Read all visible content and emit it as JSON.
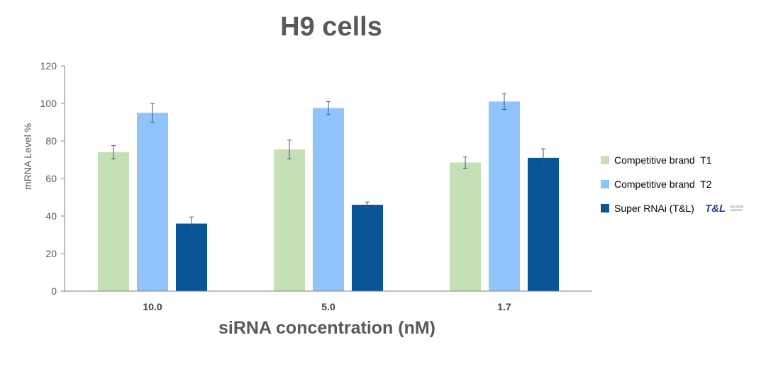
{
  "chart_data": {
    "type": "bar",
    "title": "H9 cells",
    "xlabel": "siRNA concentration (nM)",
    "ylabel": "mRNA Level %",
    "ylim": [
      0,
      120
    ],
    "yticks": [
      0,
      20,
      40,
      60,
      80,
      100,
      120
    ],
    "categories": [
      "10.0",
      "5.0",
      "1.7"
    ],
    "series": [
      {
        "name": "Competitive brand  T1",
        "color": "#c5e0b4",
        "values": [
          74,
          75.5,
          68.5
        ],
        "errors": [
          3.5,
          5,
          3
        ]
      },
      {
        "name": "Competitive brand  T2",
        "color": "#8fc3fa",
        "values": [
          95,
          97.5,
          101
        ],
        "errors": [
          5,
          3.5,
          4.2
        ]
      },
      {
        "name": "Super RNAi (T&L)",
        "color": "#0a5394",
        "values": [
          36,
          46,
          71
        ],
        "errors": [
          3.5,
          1.5,
          4.8
        ]
      }
    ],
    "legend_position": "right",
    "legend_logo": {
      "main": "T&L",
      "sub_line1": "BIOTECH",
      "sub_line2": "NOLOGY"
    }
  }
}
